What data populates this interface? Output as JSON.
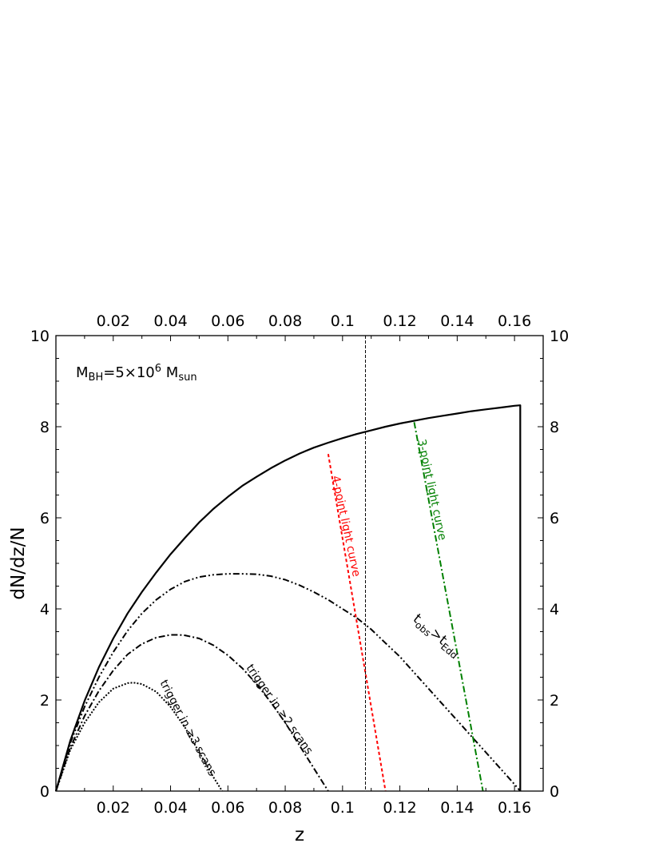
{
  "chart_data": {
    "type": "line",
    "xlabel": "z",
    "ylabel": "dN/dz/N",
    "xlim": [
      0,
      0.17
    ],
    "ylim": [
      0,
      10
    ],
    "xticks": [
      0.02,
      0.04,
      0.06,
      0.08,
      0.1,
      0.12,
      0.14,
      0.16
    ],
    "xtick_labels": [
      "0.02",
      "0.04",
      "0.06",
      "0.08",
      "0.1",
      "0.12",
      "0.14",
      "0.16"
    ],
    "yticks": [
      0,
      2,
      4,
      6,
      8,
      10
    ],
    "ytick_labels": [
      "0",
      "2",
      "4",
      "6",
      "8",
      "10"
    ],
    "mirror_axes": true,
    "grid": false,
    "annotation": {
      "base": "M",
      "sub1": "BH",
      "mid": "=5×10",
      "sup": "6",
      "sp": " M",
      "sub2": "sun"
    },
    "vertical_line_x": 0.108,
    "series": [
      {
        "label": "",
        "style": "solid",
        "color": "#000000",
        "x": [
          0,
          0.005,
          0.01,
          0.015,
          0.02,
          0.025,
          0.03,
          0.035,
          0.04,
          0.045,
          0.05,
          0.055,
          0.06,
          0.065,
          0.07,
          0.075,
          0.08,
          0.085,
          0.09,
          0.095,
          0.1,
          0.105,
          0.11,
          0.115,
          0.12,
          0.125,
          0.13,
          0.135,
          0.14,
          0.145,
          0.15,
          0.155,
          0.16,
          0.162,
          0.162
        ],
        "y": [
          0,
          1.1,
          1.98,
          2.72,
          3.35,
          3.9,
          4.37,
          4.8,
          5.2,
          5.56,
          5.9,
          6.2,
          6.46,
          6.7,
          6.9,
          7.09,
          7.26,
          7.41,
          7.54,
          7.65,
          7.75,
          7.84,
          7.92,
          8.0,
          8.07,
          8.13,
          8.19,
          8.24,
          8.29,
          8.34,
          8.38,
          8.42,
          8.46,
          8.47,
          0
        ]
      },
      {
        "label": "t_obs > t_Edd",
        "style": "dashdotdot",
        "color": "#000000",
        "x": [
          0,
          0.005,
          0.01,
          0.015,
          0.02,
          0.025,
          0.03,
          0.035,
          0.04,
          0.045,
          0.05,
          0.055,
          0.06,
          0.065,
          0.07,
          0.075,
          0.08,
          0.085,
          0.09,
          0.095,
          0.1,
          0.105,
          0.11,
          0.115,
          0.12,
          0.125,
          0.13,
          0.135,
          0.14,
          0.145,
          0.15,
          0.155,
          0.16,
          0.162
        ],
        "y": [
          0,
          1.05,
          1.85,
          2.5,
          3.05,
          3.52,
          3.9,
          4.2,
          4.43,
          4.6,
          4.7,
          4.75,
          4.77,
          4.77,
          4.76,
          4.72,
          4.64,
          4.52,
          4.37,
          4.2,
          4.0,
          3.8,
          3.55,
          3.25,
          2.95,
          2.6,
          2.25,
          1.9,
          1.55,
          1.2,
          0.85,
          0.5,
          0.15,
          0
        ]
      },
      {
        "label": "trigger in ≥2 scans",
        "style": "dashdot",
        "color": "#000000",
        "x": [
          0,
          0.005,
          0.01,
          0.015,
          0.02,
          0.025,
          0.03,
          0.035,
          0.04,
          0.043,
          0.045,
          0.05,
          0.055,
          0.06,
          0.065,
          0.07,
          0.075,
          0.08,
          0.085,
          0.09,
          0.095
        ],
        "y": [
          0,
          0.95,
          1.65,
          2.2,
          2.65,
          3.0,
          3.23,
          3.37,
          3.43,
          3.43,
          3.42,
          3.35,
          3.2,
          2.98,
          2.7,
          2.35,
          1.95,
          1.5,
          1.0,
          0.5,
          0
        ]
      },
      {
        "label": "trigger in ≥3 scans",
        "style": "dotted",
        "color": "#000000",
        "x": [
          0,
          0.005,
          0.01,
          0.015,
          0.02,
          0.025,
          0.027,
          0.03,
          0.035,
          0.04,
          0.045,
          0.05,
          0.055,
          0.058
        ],
        "y": [
          0,
          0.9,
          1.5,
          1.95,
          2.25,
          2.37,
          2.38,
          2.35,
          2.18,
          1.85,
          1.4,
          0.85,
          0.3,
          0
        ]
      },
      {
        "label": "4-point light curve",
        "style": "dashed",
        "color": "#ff0000",
        "x": [
          0.095,
          0.115
        ],
        "y": [
          7.4,
          0
        ]
      },
      {
        "label": "3-point light curve",
        "style": "dashdot",
        "color": "#008000",
        "x": [
          0.125,
          0.149
        ],
        "y": [
          8.1,
          0
        ]
      }
    ],
    "curve_labels": [
      {
        "text": "4-point light curve",
        "x": 0.1,
        "y": 5.8,
        "angle": 78,
        "color": "#ff0000"
      },
      {
        "text": "3-point light curve",
        "x": 0.13,
        "y": 6.6,
        "angle": 78,
        "color": "#008000"
      },
      {
        "text": "trigger in ≥2 scans",
        "x": 0.077,
        "y": 1.75,
        "angle": 55,
        "color": "#000000"
      },
      {
        "text": "trigger in ≥3 scans",
        "x": 0.045,
        "y": 1.35,
        "angle": 62,
        "color": "#000000"
      }
    ],
    "tobs_label": {
      "t1": "t",
      "s1": "obs",
      "gt": ">",
      "t2": "t",
      "s2": "Edd",
      "x": 0.132,
      "y": 3.35,
      "angle": 40
    }
  }
}
